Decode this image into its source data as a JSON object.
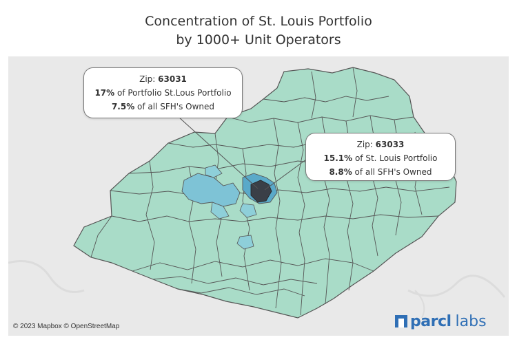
{
  "title": {
    "line1": "Concentration of St. Louis Portfolio",
    "line2": "by 1000+ Unit Operators"
  },
  "callouts": [
    {
      "prefix": "Zip: ",
      "zip": "63031",
      "line2_bold": "17%",
      "line2_text": " of Portfolio St.Lous Portfolio",
      "line3_bold": "7.5%",
      "line3_text": " of all SFH's Owned"
    },
    {
      "prefix": "Zip: ",
      "zip": "63033",
      "line2_bold": "15.1%",
      "line2_text": " of St. Louis Portfolio",
      "line3_bold": "8.8%",
      "line3_text": " of all SFH's Owned"
    }
  ],
  "attribution": "© 2023 Mapbox © OpenStreetMap",
  "logo": {
    "word": "parcl",
    "suffix": "labs"
  },
  "colors": {
    "background": "#e9e9e9",
    "region_fill": "#a9dcc8",
    "region_stroke": "#555555",
    "highlight_light": "#7ec3d6",
    "highlight_mid": "#5aa9c9",
    "highlight_dark": "#3a3f47",
    "brand": "#2f6fb5"
  }
}
